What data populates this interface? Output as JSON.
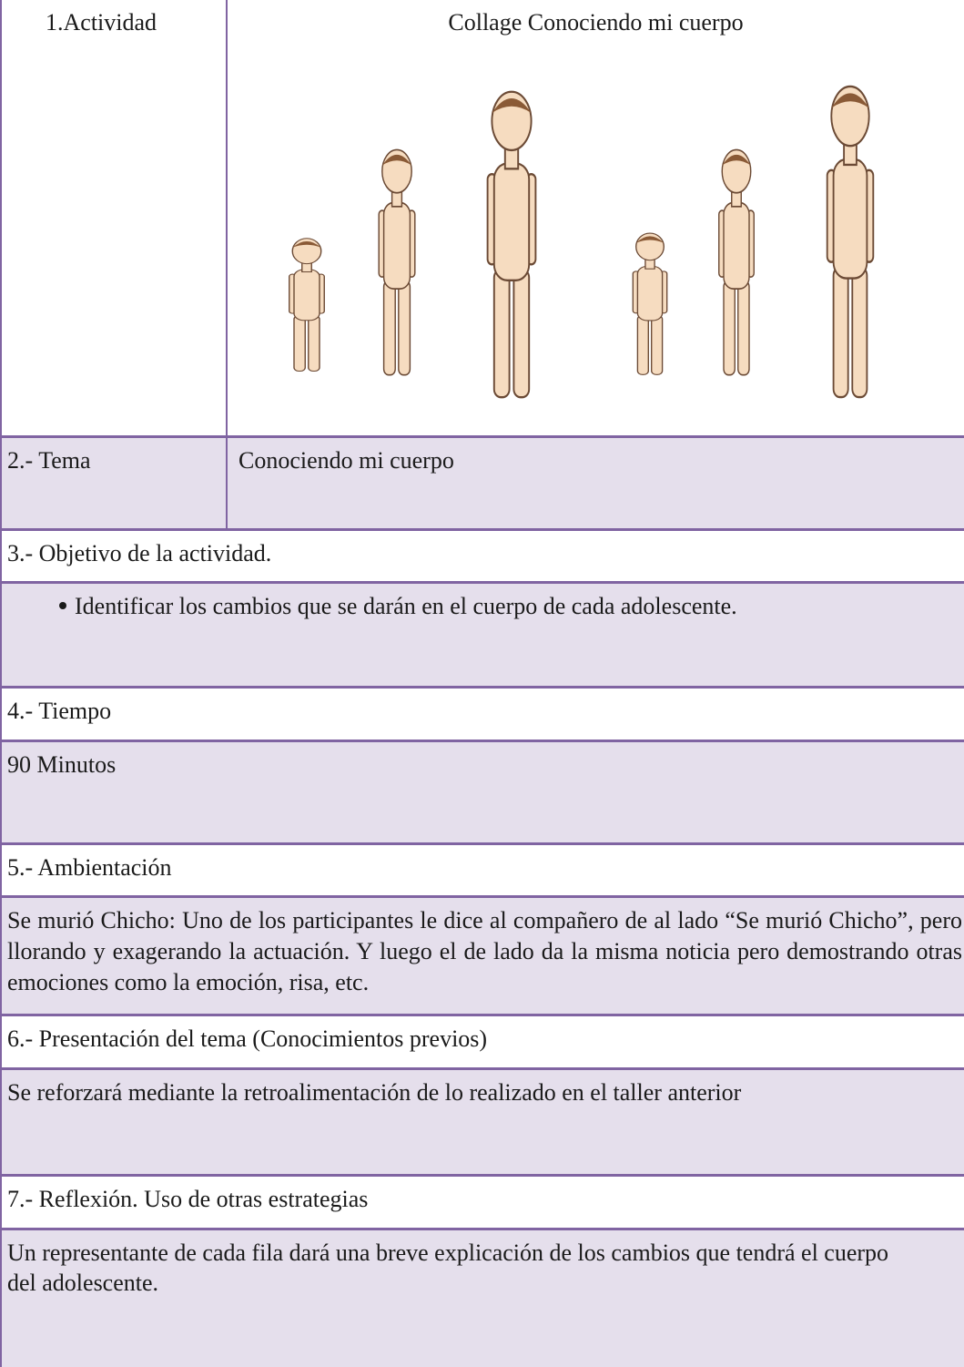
{
  "table": {
    "rows": [
      [
        "1.Actividad",
        "Collage Conociendo mi cuerpo"
      ],
      [
        "2.- Tema",
        "Conociendo mi cuerpo"
      ],
      [
        "3.- Objetivo de la actividad."
      ],
      [
        "Identificar los cambios que se darán en el cuerpo de cada adolescente."
      ],
      [
        "4.- Tiempo"
      ],
      [
        "90 Minutos"
      ],
      [
        "5.- Ambientación"
      ],
      [
        "Se murió Chicho: Uno de los participantes le dice al compañero de al lado “Se murió Chicho”, pero llorando y exagerando la actuación. Y luego el de lado da la misma noticia pero demostrando otras emociones como la emoción, risa, etc."
      ],
      [
        "6.- Presentación del tema (Conocimientos previos)"
      ],
      [
        "Se reforzará mediante la retroalimentación de lo realizado en el taller anterior"
      ],
      [
        "7.- Reflexión. Uso de otras estrategias"
      ],
      [
        "Un representante de cada fila dará una breve explicación de los cambios que tendrá el cuerpo del adolescente."
      ]
    ]
  }
}
